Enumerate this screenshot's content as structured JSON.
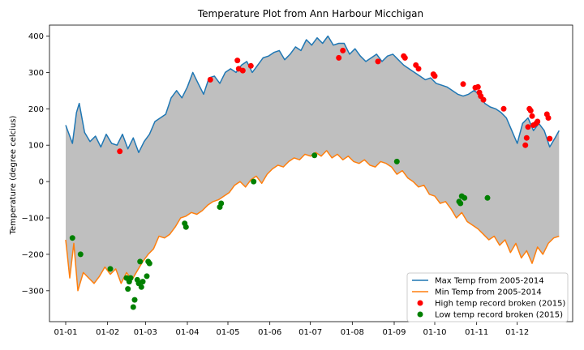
{
  "chart_data": {
    "type": "line",
    "title": "Temperature Plot from Ann Harbour Micchigan",
    "xlabel": "",
    "ylabel": "Temperature (degree celcius)",
    "xlim": [
      -12,
      375
    ],
    "ylim": [
      -385,
      430
    ],
    "x_tick_labels": [
      "01-01",
      "01-02",
      "01-03",
      "01-04",
      "01-05",
      "01-06",
      "01-07",
      "01-08",
      "01-09",
      "01-10",
      "01-11",
      "01-12"
    ],
    "x_tick_days": [
      0,
      31,
      59,
      90,
      120,
      151,
      181,
      212,
      243,
      273,
      304,
      334
    ],
    "y_ticks": [
      -300,
      -200,
      -100,
      0,
      100,
      200,
      300,
      400
    ],
    "fill_between_color": "#bfbfbf",
    "series": [
      {
        "name": "Max Temp from 2005-2014",
        "color": "#1f77b4",
        "points": [
          [
            0,
            155
          ],
          [
            5,
            105
          ],
          [
            8,
            190
          ],
          [
            10,
            215
          ],
          [
            14,
            135
          ],
          [
            18,
            110
          ],
          [
            22,
            125
          ],
          [
            26,
            95
          ],
          [
            30,
            130
          ],
          [
            34,
            105
          ],
          [
            38,
            100
          ],
          [
            42,
            130
          ],
          [
            46,
            90
          ],
          [
            50,
            120
          ],
          [
            54,
            80
          ],
          [
            58,
            110
          ],
          [
            62,
            130
          ],
          [
            66,
            165
          ],
          [
            70,
            175
          ],
          [
            74,
            185
          ],
          [
            78,
            230
          ],
          [
            82,
            250
          ],
          [
            86,
            230
          ],
          [
            90,
            260
          ],
          [
            94,
            300
          ],
          [
            98,
            270
          ],
          [
            102,
            240
          ],
          [
            106,
            285
          ],
          [
            110,
            290
          ],
          [
            114,
            270
          ],
          [
            118,
            300
          ],
          [
            122,
            310
          ],
          [
            126,
            300
          ],
          [
            130,
            320
          ],
          [
            134,
            330
          ],
          [
            138,
            300
          ],
          [
            142,
            320
          ],
          [
            146,
            340
          ],
          [
            150,
            345
          ],
          [
            154,
            355
          ],
          [
            158,
            360
          ],
          [
            162,
            335
          ],
          [
            166,
            350
          ],
          [
            170,
            370
          ],
          [
            174,
            360
          ],
          [
            178,
            390
          ],
          [
            182,
            375
          ],
          [
            186,
            395
          ],
          [
            190,
            380
          ],
          [
            194,
            400
          ],
          [
            198,
            375
          ],
          [
            202,
            380
          ],
          [
            206,
            380
          ],
          [
            210,
            350
          ],
          [
            214,
            365
          ],
          [
            218,
            345
          ],
          [
            222,
            330
          ],
          [
            226,
            340
          ],
          [
            230,
            350
          ],
          [
            234,
            330
          ],
          [
            238,
            345
          ],
          [
            242,
            350
          ],
          [
            246,
            335
          ],
          [
            250,
            320
          ],
          [
            254,
            310
          ],
          [
            258,
            300
          ],
          [
            262,
            290
          ],
          [
            266,
            280
          ],
          [
            270,
            285
          ],
          [
            274,
            270
          ],
          [
            278,
            265
          ],
          [
            282,
            260
          ],
          [
            286,
            250
          ],
          [
            290,
            240
          ],
          [
            294,
            235
          ],
          [
            298,
            240
          ],
          [
            302,
            250
          ],
          [
            306,
            240
          ],
          [
            310,
            215
          ],
          [
            314,
            205
          ],
          [
            318,
            200
          ],
          [
            322,
            190
          ],
          [
            326,
            175
          ],
          [
            330,
            140
          ],
          [
            334,
            105
          ],
          [
            338,
            160
          ],
          [
            342,
            175
          ],
          [
            346,
            140
          ],
          [
            350,
            160
          ],
          [
            354,
            140
          ],
          [
            358,
            95
          ],
          [
            362,
            120
          ],
          [
            365,
            140
          ]
        ]
      },
      {
        "name": "Min Temp from 2005-2014",
        "color": "#ff7f0e",
        "points": [
          [
            0,
            -160
          ],
          [
            3,
            -265
          ],
          [
            6,
            -170
          ],
          [
            9,
            -300
          ],
          [
            13,
            -250
          ],
          [
            17,
            -265
          ],
          [
            21,
            -280
          ],
          [
            25,
            -260
          ],
          [
            29,
            -235
          ],
          [
            33,
            -255
          ],
          [
            37,
            -240
          ],
          [
            41,
            -280
          ],
          [
            45,
            -250
          ],
          [
            49,
            -270
          ],
          [
            53,
            -245
          ],
          [
            57,
            -220
          ],
          [
            61,
            -200
          ],
          [
            65,
            -185
          ],
          [
            69,
            -150
          ],
          [
            73,
            -155
          ],
          [
            77,
            -145
          ],
          [
            81,
            -125
          ],
          [
            85,
            -100
          ],
          [
            89,
            -95
          ],
          [
            93,
            -85
          ],
          [
            97,
            -90
          ],
          [
            101,
            -80
          ],
          [
            105,
            -65
          ],
          [
            109,
            -55
          ],
          [
            113,
            -50
          ],
          [
            117,
            -40
          ],
          [
            121,
            -30
          ],
          [
            125,
            -10
          ],
          [
            129,
            0
          ],
          [
            133,
            -15
          ],
          [
            137,
            5
          ],
          [
            141,
            15
          ],
          [
            145,
            -5
          ],
          [
            149,
            20
          ],
          [
            153,
            35
          ],
          [
            157,
            45
          ],
          [
            161,
            40
          ],
          [
            165,
            55
          ],
          [
            169,
            65
          ],
          [
            173,
            60
          ],
          [
            177,
            75
          ],
          [
            181,
            70
          ],
          [
            185,
            80
          ],
          [
            189,
            70
          ],
          [
            193,
            85
          ],
          [
            197,
            65
          ],
          [
            201,
            75
          ],
          [
            205,
            60
          ],
          [
            209,
            70
          ],
          [
            213,
            55
          ],
          [
            217,
            50
          ],
          [
            221,
            60
          ],
          [
            225,
            45
          ],
          [
            229,
            40
          ],
          [
            233,
            55
          ],
          [
            237,
            50
          ],
          [
            241,
            40
          ],
          [
            245,
            20
          ],
          [
            249,
            30
          ],
          [
            253,
            10
          ],
          [
            257,
            0
          ],
          [
            261,
            -15
          ],
          [
            265,
            -10
          ],
          [
            269,
            -35
          ],
          [
            273,
            -40
          ],
          [
            277,
            -60
          ],
          [
            281,
            -55
          ],
          [
            285,
            -75
          ],
          [
            289,
            -100
          ],
          [
            293,
            -85
          ],
          [
            297,
            -110
          ],
          [
            301,
            -120
          ],
          [
            305,
            -130
          ],
          [
            309,
            -145
          ],
          [
            313,
            -160
          ],
          [
            317,
            -150
          ],
          [
            321,
            -175
          ],
          [
            325,
            -160
          ],
          [
            329,
            -195
          ],
          [
            333,
            -170
          ],
          [
            337,
            -210
          ],
          [
            341,
            -190
          ],
          [
            345,
            -225
          ],
          [
            349,
            -180
          ],
          [
            353,
            -200
          ],
          [
            357,
            -170
          ],
          [
            361,
            -155
          ],
          [
            365,
            -150
          ]
        ]
      }
    ],
    "scatter_series": [
      {
        "name": "High temp record broken (2015)",
        "color": "#ff0000",
        "points": [
          [
            40,
            83
          ],
          [
            107,
            280
          ],
          [
            127,
            333
          ],
          [
            128,
            310
          ],
          [
            131,
            305
          ],
          [
            137,
            318
          ],
          [
            202,
            340
          ],
          [
            205,
            360
          ],
          [
            231,
            330
          ],
          [
            250,
            345
          ],
          [
            251,
            340
          ],
          [
            259,
            320
          ],
          [
            261,
            310
          ],
          [
            272,
            295
          ],
          [
            273,
            290
          ],
          [
            294,
            268
          ],
          [
            303,
            258
          ],
          [
            305,
            260
          ],
          [
            306,
            245
          ],
          [
            307,
            235
          ],
          [
            309,
            225
          ],
          [
            324,
            200
          ],
          [
            340,
            100
          ],
          [
            341,
            120
          ],
          [
            342,
            150
          ],
          [
            343,
            200
          ],
          [
            344,
            195
          ],
          [
            345,
            180
          ],
          [
            346,
            155
          ],
          [
            348,
            160
          ],
          [
            349,
            165
          ],
          [
            356,
            185
          ],
          [
            357,
            175
          ],
          [
            358,
            118
          ]
        ]
      },
      {
        "name": "Low temp record broken (2015)",
        "color": "#008000",
        "points": [
          [
            5,
            -155
          ],
          [
            11,
            -200
          ],
          [
            33,
            -240
          ],
          [
            45,
            -265
          ],
          [
            46,
            -295
          ],
          [
            47,
            -275
          ],
          [
            48,
            -265
          ],
          [
            50,
            -345
          ],
          [
            51,
            -325
          ],
          [
            53,
            -270
          ],
          [
            54,
            -280
          ],
          [
            55,
            -220
          ],
          [
            56,
            -290
          ],
          [
            57,
            -275
          ],
          [
            60,
            -260
          ],
          [
            61,
            -220
          ],
          [
            62,
            -225
          ],
          [
            88,
            -115
          ],
          [
            89,
            -125
          ],
          [
            114,
            -70
          ],
          [
            115,
            -60
          ],
          [
            139,
            0
          ],
          [
            184,
            72
          ],
          [
            245,
            55
          ],
          [
            291,
            -55
          ],
          [
            292,
            -60
          ],
          [
            293,
            -40
          ],
          [
            295,
            -45
          ],
          [
            312,
            -45
          ]
        ]
      }
    ],
    "legend": {
      "position": "lower-right",
      "entries": [
        {
          "label": "Max Temp from 2005-2014",
          "kind": "line",
          "color": "#1f77b4"
        },
        {
          "label": "Min Temp from 2005-2014",
          "kind": "line",
          "color": "#ff7f0e"
        },
        {
          "label": "High temp record broken (2015)",
          "kind": "dot",
          "color": "#ff0000"
        },
        {
          "label": "Low temp record broken (2015)",
          "kind": "dot",
          "color": "#008000"
        }
      ]
    },
    "grid": false
  }
}
